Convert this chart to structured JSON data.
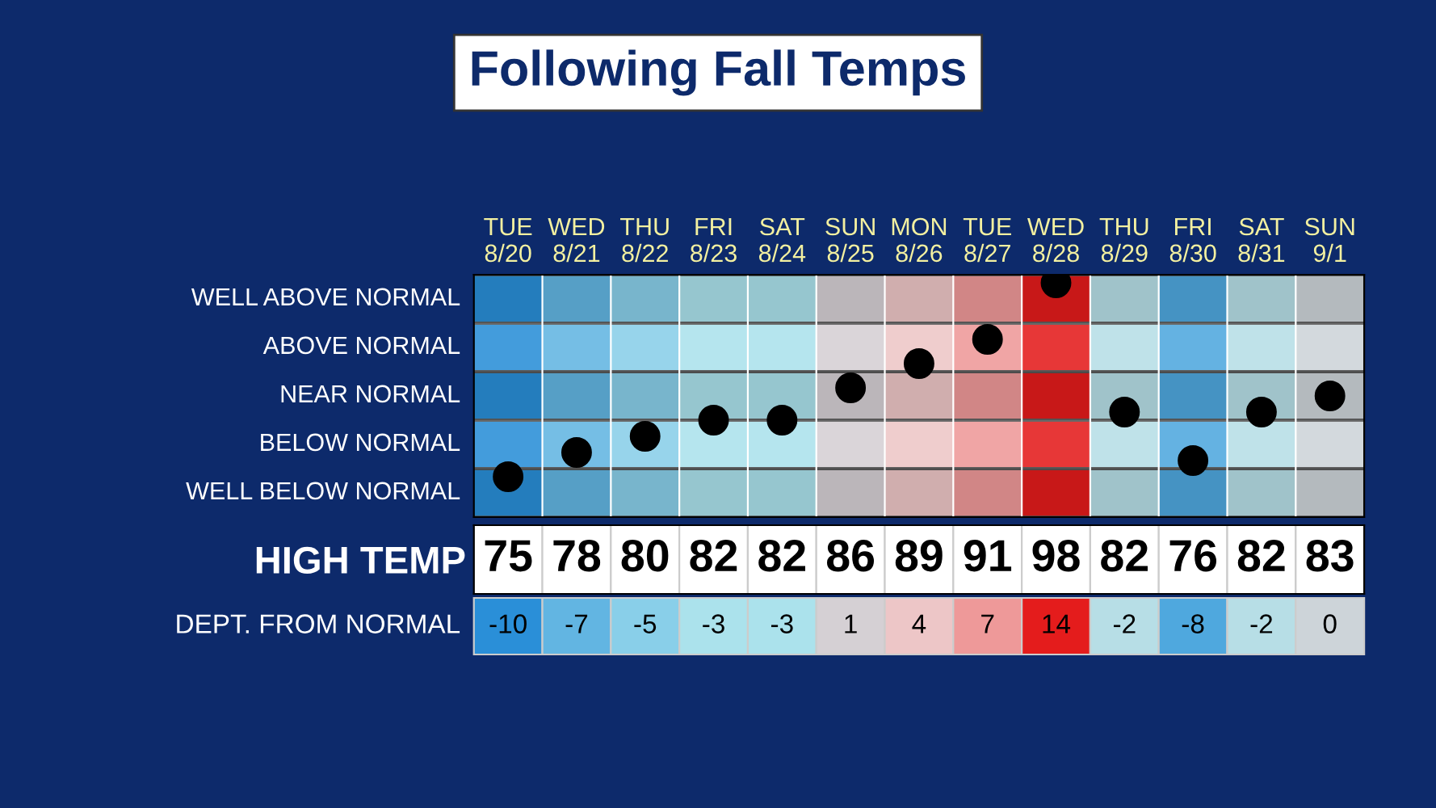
{
  "chart_data": [
    {
      "type": "scatter",
      "title": "Following Fall Temps",
      "categories": [
        "TUE\n8/20",
        "WED\n8/21",
        "THU\n8/22",
        "FRI\n8/23",
        "SAT\n8/24",
        "SUN\n8/25",
        "MON\n8/26",
        "TUE\n8/27",
        "WED\n8/28",
        "THU\n8/29",
        "FRI\n8/30",
        "SAT\n8/31",
        "SUN\n9/1"
      ],
      "series": [
        {
          "color": "#000000",
          "values": [
            -10,
            -7,
            -5,
            -3,
            -3,
            1,
            4,
            7,
            14,
            -2,
            -8,
            -2,
            0
          ]
        }
      ],
      "annotations": [
        "DEPT. FROM NORMAL"
      ],
      "marker": "circle",
      "data_labels": true,
      "ylim": [
        -15,
        15
      ],
      "tick_labels": "x",
      "bands": [
        {
          "axis": "y",
          "from": 9,
          "to": 15,
          "label": "WELL ABOVE NORMAL",
          "color": "#000000"
        },
        {
          "axis": "y",
          "from": 3,
          "to": 9,
          "label": "ABOVE NORMAL",
          "color": "#ffffff"
        },
        {
          "axis": "y",
          "from": -3,
          "to": 3,
          "label": "NEAR NORMAL",
          "color": "#000000"
        },
        {
          "axis": "y",
          "from": -9,
          "to": -3,
          "label": "BELOW NORMAL",
          "color": "#ffffff"
        },
        {
          "axis": "y",
          "from": -15,
          "to": -9,
          "label": "WELL BELOW NORMAL",
          "color": "#000000"
        }
      ]
    },
    {
      "type": "heatmap",
      "categories": [
        null,
        null,
        null,
        null,
        null,
        null,
        null,
        null,
        null,
        null,
        null,
        null,
        null
      ],
      "y_categories": [
        "HIGH TEMP"
      ],
      "cells": [
        [
          75,
          78,
          80,
          82,
          82,
          86,
          89,
          91,
          98,
          82,
          76,
          82,
          83
        ]
      ],
      "data_labels": true,
      "tick_labels": "y"
    }
  ]
}
